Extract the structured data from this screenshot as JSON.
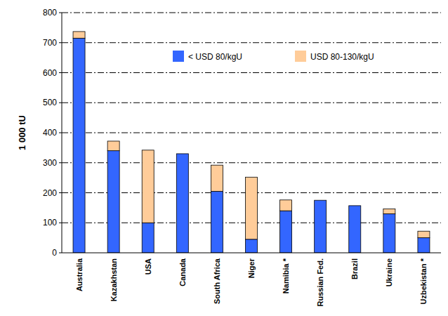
{
  "chart_data": {
    "type": "bar",
    "stacked": true,
    "grid": true,
    "legend": "top",
    "y_label": "1 000 tU",
    "categories": [
      "Australia",
      "Kazakhstan",
      "USA",
      "Canada",
      "South Africa",
      "Niger",
      "Namibia *",
      "Russian Fed.",
      "Brazil",
      "Ukraine",
      "Uzbekistan *"
    ],
    "series": [
      {
        "name": "< USD 80/kgU",
        "color": "#3366ff",
        "values": [
          715,
          340,
          100,
          330,
          205,
          45,
          140,
          175,
          157,
          130,
          50
        ]
      },
      {
        "name": "USD 80-130/kgU",
        "color": "#ffcc99",
        "values": [
          22,
          32,
          242,
          0,
          87,
          207,
          36,
          0,
          0,
          16,
          22
        ]
      }
    ],
    "ylim": [
      0,
      800
    ],
    "yticks": [
      0,
      100,
      200,
      300,
      400,
      500,
      600,
      700,
      800
    ]
  }
}
